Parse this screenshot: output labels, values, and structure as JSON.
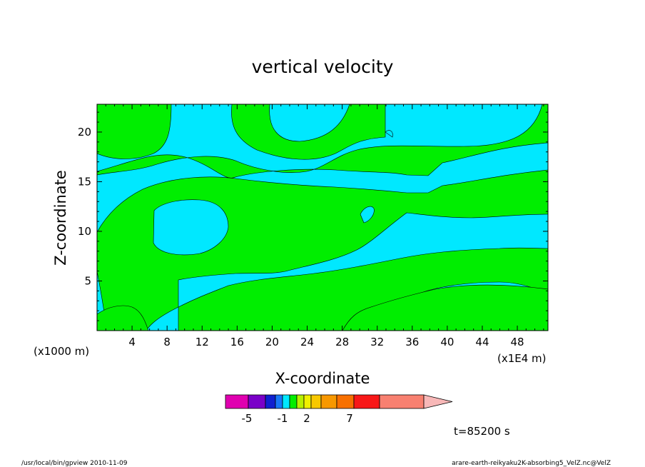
{
  "chart_data": {
    "type": "heatmap",
    "title": "vertical velocity",
    "xlabel": "X-coordinate",
    "ylabel": "Z-coordinate",
    "x_units": "(x1E4 m)",
    "y_units": "(x1000 m)",
    "xlim": [
      0,
      51.5
    ],
    "ylim": [
      0,
      22.8
    ],
    "x_ticks": [
      "4",
      "8",
      "12",
      "16",
      "20",
      "24",
      "28",
      "32",
      "36",
      "40",
      "44",
      "48"
    ],
    "y_ticks": [
      "5",
      "10",
      "15",
      "20"
    ],
    "time_label": "t=85200 s",
    "colorbar": {
      "tick_labels": [
        "-5",
        "-1",
        "2",
        "7"
      ],
      "colors": [
        "#e000b0",
        "#7a00c8",
        "#1020d0",
        "#1878f8",
        "#00e8ff",
        "#00ee00",
        "#b8f000",
        "#f0f000",
        "#f8c800",
        "#f89800",
        "#f87000",
        "#f81818",
        "#f88070",
        "#f8b8b8"
      ]
    },
    "field_colors": {
      "negative": "#00e8ff",
      "positive": "#00ee00"
    }
  },
  "footer": {
    "left": "/usr/local/bin/gpview   2010-11-09",
    "right": "arare-earth-reikyaku2K-absorbing5_VelZ.nc@VelZ"
  }
}
